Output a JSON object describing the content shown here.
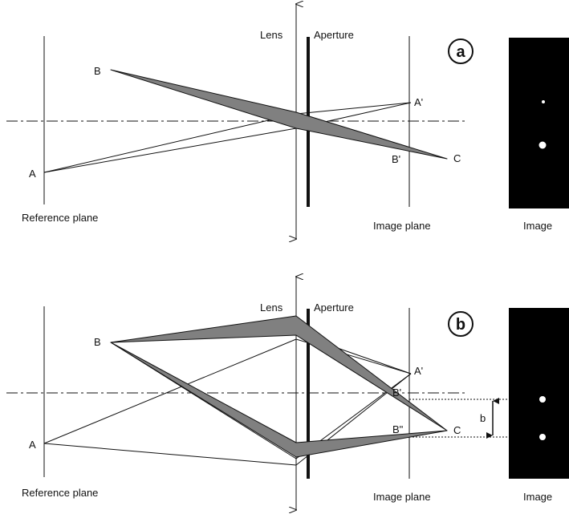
{
  "panels": [
    {
      "id": "a",
      "badge": "a",
      "lens_label": "Lens",
      "aperture_label": "Aperture",
      "reference_plane_label": "Reference plane",
      "image_plane_label": "Image plane",
      "image_label": "Image",
      "points": {
        "A": "A",
        "B": "B",
        "A_prime": "A'",
        "B_prime": "B'",
        "C": "C"
      }
    },
    {
      "id": "b",
      "badge": "b",
      "lens_label": "Lens",
      "aperture_label": "Aperture",
      "reference_plane_label": "Reference plane",
      "image_plane_label": "Image plane",
      "image_label": "Image",
      "points": {
        "A": "A",
        "B": "B",
        "A_prime": "A'",
        "B_prime": "B'",
        "B_double_prime": "B\"",
        "C": "C"
      },
      "dimension_label": "b"
    }
  ],
  "colors": {
    "beam_fill": "#808080",
    "line": "#111111",
    "image_panel": "#000000",
    "spot": "#ffffff"
  }
}
